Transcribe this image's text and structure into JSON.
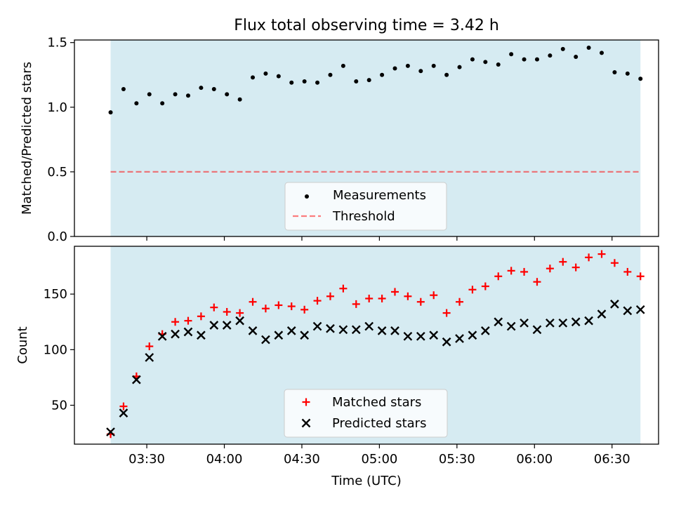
{
  "figure": {
    "title": "Flux total observing time = 3.42 h"
  },
  "colors": {
    "span": "#add8e6",
    "measurement": "#000000",
    "threshold": "#ff0000",
    "matched": "#ff0000",
    "predicted": "#000000"
  },
  "chart_data": [
    {
      "type": "scatter",
      "panel": "top",
      "ylabel": "Matched/Predicted stars",
      "xlim": [
        "03:02",
        "06:48"
      ],
      "ylim": [
        0,
        1.52
      ],
      "yticks": [
        "0.0",
        "0.5",
        "1.0",
        "1.5"
      ],
      "shaded_span": [
        "03:16",
        "06:41"
      ],
      "threshold": 0.5,
      "legend": {
        "placement": "bottom-center",
        "entries": [
          "Measurements",
          "Threshold"
        ]
      },
      "x": [
        "03:16",
        "03:21",
        "03:26",
        "03:31",
        "03:36",
        "03:41",
        "03:46",
        "03:51",
        "03:56",
        "04:01",
        "04:06",
        "04:11",
        "04:16",
        "04:21",
        "04:26",
        "04:31",
        "04:36",
        "04:41",
        "04:46",
        "04:51",
        "04:56",
        "05:01",
        "05:06",
        "05:11",
        "05:16",
        "05:21",
        "05:26",
        "05:31",
        "05:36",
        "05:41",
        "05:46",
        "05:51",
        "05:56",
        "06:01",
        "06:06",
        "06:11",
        "06:16",
        "06:21",
        "06:26",
        "06:31",
        "06:36",
        "06:41"
      ],
      "series": [
        {
          "name": "Measurements",
          "values": [
            0.96,
            1.14,
            1.03,
            1.1,
            1.03,
            1.1,
            1.09,
            1.15,
            1.14,
            1.1,
            1.06,
            1.23,
            1.26,
            1.24,
            1.19,
            1.2,
            1.19,
            1.25,
            1.32,
            1.2,
            1.21,
            1.25,
            1.3,
            1.32,
            1.28,
            1.32,
            1.25,
            1.31,
            1.37,
            1.35,
            1.33,
            1.41,
            1.37,
            1.37,
            1.4,
            1.45,
            1.39,
            1.46,
            1.42,
            1.27,
            1.26,
            1.22
          ]
        },
        {
          "name": "Threshold",
          "values": [
            0.5,
            0.5
          ]
        }
      ]
    },
    {
      "type": "scatter",
      "panel": "bottom",
      "xlabel": "Time (UTC)",
      "ylabel": "Count",
      "xlim": [
        "03:02",
        "06:48"
      ],
      "ylim": [
        15,
        193
      ],
      "yticks": [
        "50",
        "100",
        "150"
      ],
      "xticks": [
        "03:30",
        "04:00",
        "04:30",
        "05:00",
        "05:30",
        "06:00",
        "06:30"
      ],
      "shaded_span": [
        "03:16",
        "06:41"
      ],
      "legend": {
        "placement": "bottom-center",
        "entries": [
          "Matched stars",
          "Predicted stars"
        ]
      },
      "x": [
        "03:16",
        "03:21",
        "03:26",
        "03:31",
        "03:36",
        "03:41",
        "03:46",
        "03:51",
        "03:56",
        "04:01",
        "04:06",
        "04:11",
        "04:16",
        "04:21",
        "04:26",
        "04:31",
        "04:36",
        "04:41",
        "04:46",
        "04:51",
        "04:56",
        "05:01",
        "05:06",
        "05:11",
        "05:16",
        "05:21",
        "05:26",
        "05:31",
        "05:36",
        "05:41",
        "05:46",
        "05:51",
        "05:56",
        "06:01",
        "06:06",
        "06:11",
        "06:16",
        "06:21",
        "06:26",
        "06:31",
        "06:36",
        "06:41"
      ],
      "series": [
        {
          "name": "Matched stars",
          "values": [
            24,
            49,
            76,
            103,
            114,
            125,
            126,
            130,
            138,
            134,
            133,
            143,
            137,
            140,
            139,
            136,
            144,
            148,
            155,
            141,
            146,
            146,
            152,
            148,
            143,
            149,
            133,
            143,
            154,
            157,
            166,
            171,
            170,
            161,
            173,
            179,
            174,
            183,
            186,
            178,
            170,
            166
          ]
        },
        {
          "name": "Predicted stars",
          "values": [
            26,
            43,
            73,
            93,
            112,
            114,
            116,
            113,
            122,
            122,
            126,
            117,
            109,
            113,
            117,
            113,
            121,
            119,
            118,
            118,
            121,
            117,
            117,
            112,
            112,
            113,
            107,
            110,
            113,
            117,
            125,
            121,
            124,
            118,
            124,
            124,
            125,
            126,
            132,
            141,
            135,
            136
          ]
        }
      ]
    }
  ]
}
